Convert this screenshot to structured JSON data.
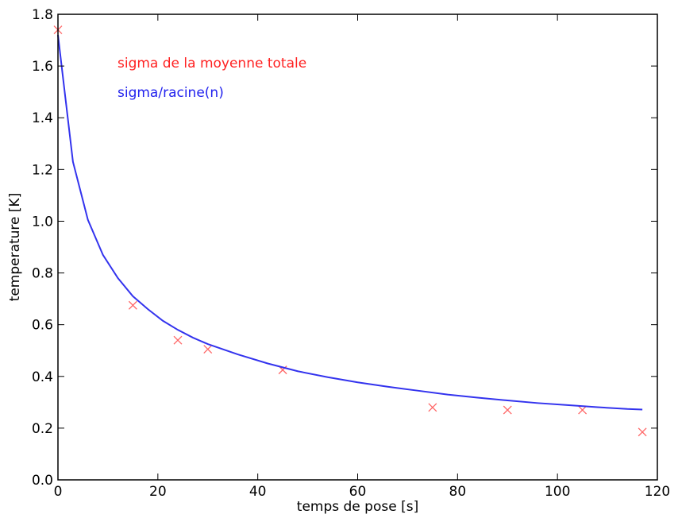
{
  "chart_data": {
    "type": "line",
    "title": "",
    "xlabel": "temps de pose [s]",
    "ylabel": "temperature [K]",
    "xlim": [
      0,
      120
    ],
    "ylim": [
      0.0,
      1.8
    ],
    "x_ticks": [
      0,
      20,
      40,
      60,
      80,
      100,
      120
    ],
    "x_tick_labels": [
      "0",
      "20",
      "40",
      "60",
      "80",
      "100",
      "120"
    ],
    "y_ticks": [
      0.0,
      0.2,
      0.4,
      0.6,
      0.8,
      1.0,
      1.2,
      1.4,
      1.6,
      1.8
    ],
    "y_tick_labels": [
      "0.0",
      "0.2",
      "0.4",
      "0.6",
      "0.8",
      "1.0",
      "1.2",
      "1.4",
      "1.6",
      "1.8"
    ],
    "grid": false,
    "annotations": [
      {
        "text": "sigma de la moyenne totale",
        "color": "#ff2222"
      },
      {
        "text": "sigma/racine(n)",
        "color": "#2222ee"
      }
    ],
    "series": [
      {
        "kind": "scatter",
        "marker": "x",
        "color": "#ff6666",
        "points": [
          {
            "x": 0,
            "y": 1.74
          },
          {
            "x": 15,
            "y": 0.675
          },
          {
            "x": 24,
            "y": 0.54
          },
          {
            "x": 30,
            "y": 0.505
          },
          {
            "x": 45,
            "y": 0.425
          },
          {
            "x": 75,
            "y": 0.28
          },
          {
            "x": 90,
            "y": 0.27
          },
          {
            "x": 105,
            "y": 0.27
          },
          {
            "x": 117,
            "y": 0.185
          }
        ]
      },
      {
        "kind": "line",
        "color": "#3333ee",
        "points": [
          {
            "x": 0,
            "y": 1.72
          },
          {
            "x": 3,
            "y": 1.23
          },
          {
            "x": 6,
            "y": 1.005
          },
          {
            "x": 9,
            "y": 0.87
          },
          {
            "x": 12,
            "y": 0.78
          },
          {
            "x": 15,
            "y": 0.71
          },
          {
            "x": 18,
            "y": 0.66
          },
          {
            "x": 21,
            "y": 0.615
          },
          {
            "x": 24,
            "y": 0.58
          },
          {
            "x": 27,
            "y": 0.55
          },
          {
            "x": 30,
            "y": 0.525
          },
          {
            "x": 36,
            "y": 0.485
          },
          {
            "x": 42,
            "y": 0.45
          },
          {
            "x": 48,
            "y": 0.42
          },
          {
            "x": 54,
            "y": 0.397
          },
          {
            "x": 60,
            "y": 0.377
          },
          {
            "x": 66,
            "y": 0.36
          },
          {
            "x": 72,
            "y": 0.345
          },
          {
            "x": 78,
            "y": 0.33
          },
          {
            "x": 84,
            "y": 0.318
          },
          {
            "x": 90,
            "y": 0.307
          },
          {
            "x": 96,
            "y": 0.297
          },
          {
            "x": 102,
            "y": 0.289
          },
          {
            "x": 108,
            "y": 0.281
          },
          {
            "x": 114,
            "y": 0.274
          },
          {
            "x": 117,
            "y": 0.272
          }
        ]
      }
    ]
  }
}
